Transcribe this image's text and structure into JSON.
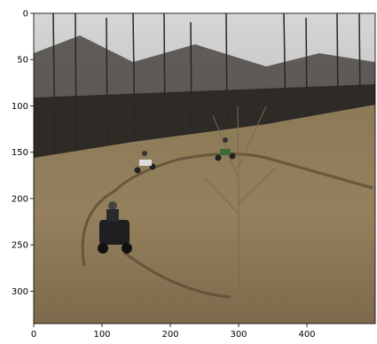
{
  "chart_data": {
    "type": "image",
    "xlim": [
      0,
      500
    ],
    "ylim": [
      335,
      0
    ],
    "xticks": [
      0,
      100,
      200,
      300,
      400
    ],
    "yticks": [
      0,
      50,
      100,
      150,
      200,
      250,
      300
    ]
  }
}
